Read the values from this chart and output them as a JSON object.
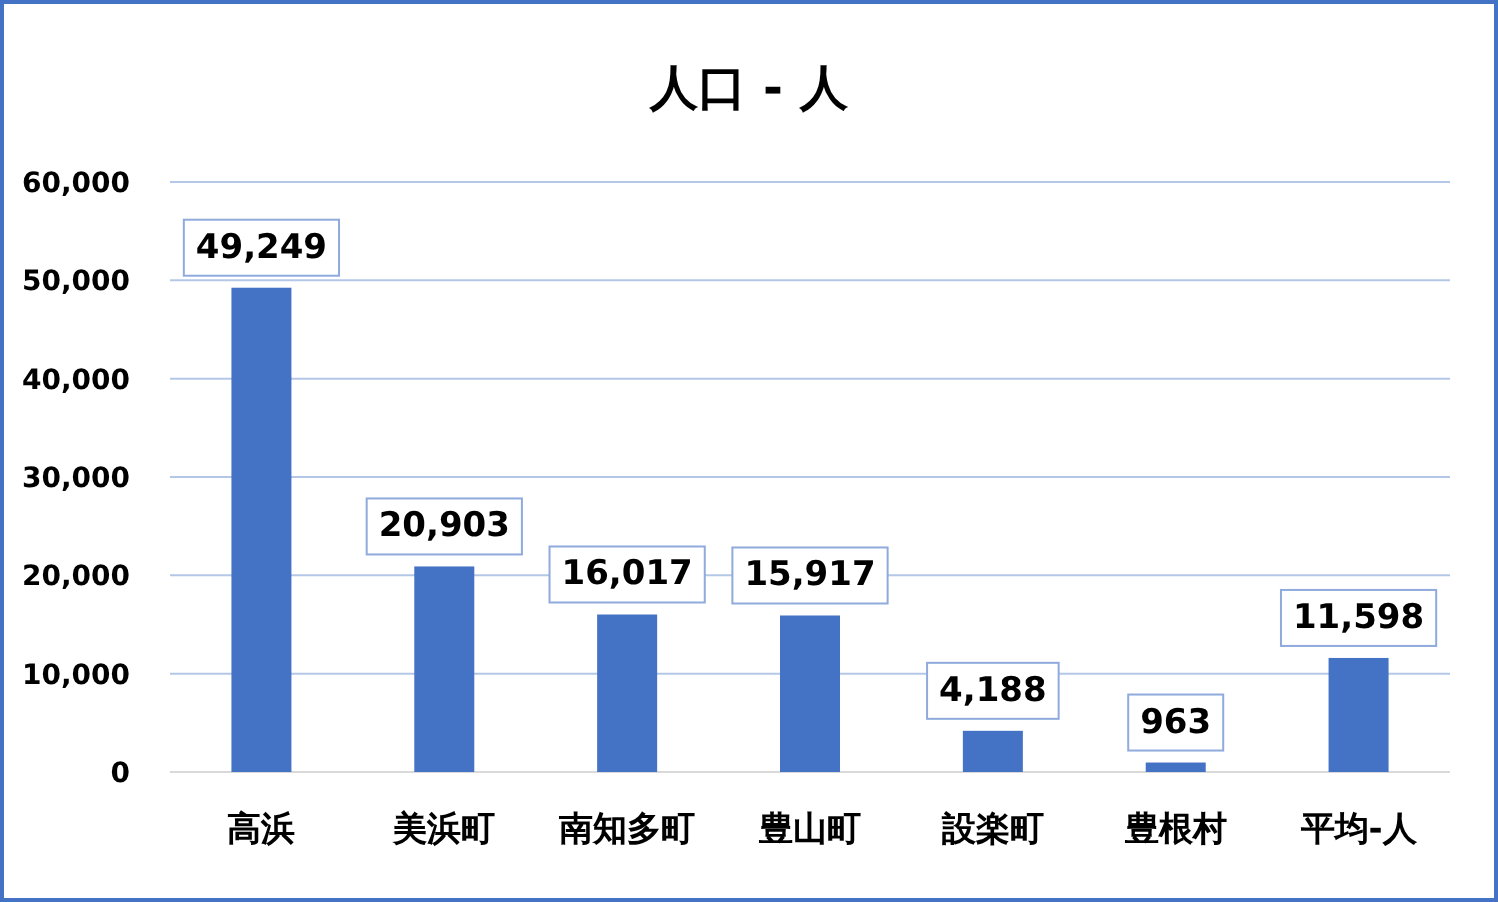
{
  "chart_data": {
    "type": "bar",
    "title": "人口 - 人",
    "categories": [
      "高浜",
      "美浜町",
      "南知多町",
      "豊山町",
      "設楽町",
      "豊根村",
      "平均-人"
    ],
    "values": [
      49249,
      20903,
      16017,
      15917,
      4188,
      963,
      11598
    ],
    "value_labels": [
      "49,249",
      "20,903",
      "16,017",
      "15,917",
      "4,188",
      "963",
      "11,598"
    ],
    "color": "#4472c4",
    "ylim": [
      0,
      60000
    ],
    "yticks": [
      {
        "value": 0,
        "label": "0"
      },
      {
        "value": 10000,
        "label": "10,000"
      },
      {
        "value": 20000,
        "label": "20,000"
      },
      {
        "value": 30000,
        "label": "30,000"
      },
      {
        "value": 40000,
        "label": "40,000"
      },
      {
        "value": 50000,
        "label": "50,000"
      },
      {
        "value": 60000,
        "label": "60,000"
      }
    ],
    "grid": "y"
  }
}
